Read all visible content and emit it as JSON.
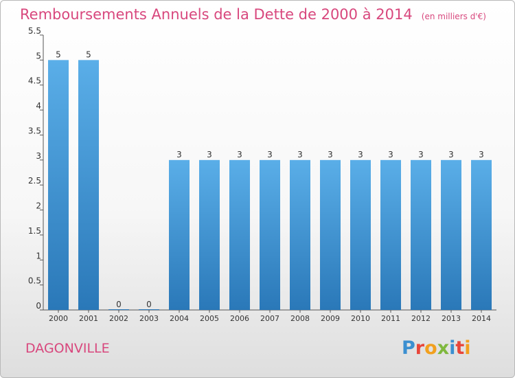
{
  "header": {
    "title": "Remboursements Annuels de la Dette de 2000 à 2014",
    "unit": "(en milliers d'€)"
  },
  "footer": {
    "commune": "DAGONVILLE",
    "logo": {
      "text": "Proxiti",
      "letters": [
        {
          "ch": "P",
          "color": "#3b8fd0"
        },
        {
          "ch": "r",
          "color": "#e8463a"
        },
        {
          "ch": "o",
          "color": "#f2a01e"
        },
        {
          "ch": "x",
          "color": "#7fb83d"
        },
        {
          "ch": "i",
          "color": "#3b8fd0"
        },
        {
          "ch": "t",
          "color": "#e8463a"
        },
        {
          "ch": "i",
          "color": "#f2a01e"
        }
      ]
    }
  },
  "colors": {
    "title": "#d8477d",
    "bar_top": "#5aaee8",
    "bar_bottom": "#2a78b8",
    "axis": "#555555",
    "text": "#333333"
  },
  "chart_data": {
    "type": "bar",
    "title": "Remboursements Annuels de la Dette de 2000 à 2014",
    "categories": [
      "2000",
      "2001",
      "2002",
      "2003",
      "2004",
      "2005",
      "2006",
      "2007",
      "2008",
      "2009",
      "2010",
      "2011",
      "2012",
      "2013",
      "2014"
    ],
    "values": [
      5,
      5,
      0,
      0,
      3,
      3,
      3,
      3,
      3,
      3,
      3,
      3,
      3,
      3,
      3
    ],
    "ylim": [
      0,
      5.5
    ],
    "yticks": [
      "0",
      "0.5",
      "1",
      "1.5",
      "2",
      "2.5",
      "3",
      "3.5",
      "4",
      "4.5",
      "5",
      "5.5"
    ],
    "grid": false,
    "xlabel": "",
    "ylabel": ""
  }
}
